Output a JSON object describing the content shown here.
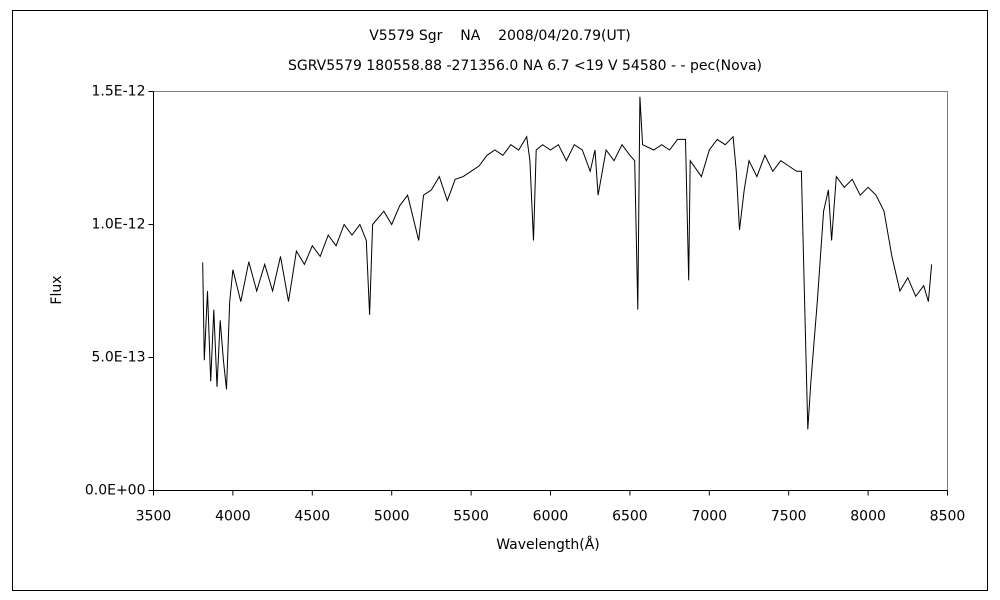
{
  "chart_data": {
    "type": "line",
    "title": "V5579 Sgr    NA    2008/04/20.79(UT)",
    "subtitle": "SGRV5579 180558.88 -271356.0 NA 6.7 <19 V 54580 - - pec(Nova)",
    "x_label": "Wavelength(Å)",
    "y_label": "Flux",
    "color": "#000000",
    "grid": false,
    "xlim": [
      3500,
      8500
    ],
    "xticks": [
      3500,
      4000,
      4500,
      5000,
      5500,
      6000,
      6500,
      7000,
      7500,
      8000,
      8500
    ],
    "ylim": [
      0,
      1.5e-12
    ],
    "yticks": [
      {
        "value": 0,
        "label": "0.0E+00"
      },
      {
        "value": 5e-13,
        "label": "5.0E-13"
      },
      {
        "value": 1e-12,
        "label": "1.0E-12"
      },
      {
        "value": 1.5e-12,
        "label": "1.5E-12"
      }
    ],
    "x": [
      3810,
      3820,
      3840,
      3860,
      3880,
      3900,
      3920,
      3940,
      3960,
      3980,
      4000,
      4050,
      4100,
      4150,
      4200,
      4250,
      4300,
      4350,
      4400,
      4450,
      4500,
      4550,
      4600,
      4650,
      4700,
      4750,
      4800,
      4840,
      4861,
      4880,
      4950,
      5000,
      5050,
      5100,
      5170,
      5200,
      5250,
      5300,
      5350,
      5400,
      5450,
      5500,
      5550,
      5600,
      5650,
      5700,
      5750,
      5800,
      5850,
      5870,
      5893,
      5910,
      5950,
      6000,
      6050,
      6100,
      6150,
      6200,
      6250,
      6280,
      6300,
      6350,
      6400,
      6450,
      6500,
      6530,
      6550,
      6563,
      6580,
      6650,
      6700,
      6750,
      6800,
      6850,
      6870,
      6880,
      6950,
      7000,
      7050,
      7100,
      7150,
      7170,
      7190,
      7220,
      7250,
      7300,
      7350,
      7400,
      7450,
      7500,
      7550,
      7580,
      7600,
      7620,
      7640,
      7680,
      7720,
      7750,
      7770,
      7800,
      7850,
      7900,
      7950,
      8000,
      8050,
      8100,
      8150,
      8200,
      8250,
      8300,
      8350,
      8380,
      8400
    ],
    "values": [
      8.57e-13,
      4.9e-13,
      7.5e-13,
      4.1e-13,
      6.8e-13,
      3.9e-13,
      6.4e-13,
      4.9e-13,
      3.8e-13,
      7.1e-13,
      8.3e-13,
      7.1e-13,
      8.6e-13,
      7.5e-13,
      8.5e-13,
      7.5e-13,
      8.8e-13,
      7.1e-13,
      9e-13,
      8.5e-13,
      9.2e-13,
      8.8e-13,
      9.6e-13,
      9.2e-13,
      1e-12,
      9.6e-13,
      1e-12,
      9.4e-13,
      6.6e-13,
      1e-12,
      1.05e-12,
      1e-12,
      1.07e-12,
      1.11e-12,
      9.4e-13,
      1.11e-12,
      1.13e-12,
      1.18e-12,
      1.09e-12,
      1.17e-12,
      1.18e-12,
      1.2e-12,
      1.22e-12,
      1.26e-12,
      1.28e-12,
      1.26e-12,
      1.3e-12,
      1.28e-12,
      1.33e-12,
      1.24e-12,
      9.4e-13,
      1.28e-12,
      1.3e-12,
      1.28e-12,
      1.3e-12,
      1.24e-12,
      1.3e-12,
      1.28e-12,
      1.2e-12,
      1.28e-12,
      1.11e-12,
      1.28e-12,
      1.24e-12,
      1.3e-12,
      1.26e-12,
      1.24e-12,
      6.8e-13,
      1.48e-12,
      1.3e-12,
      1.28e-12,
      1.3e-12,
      1.28e-12,
      1.32e-12,
      1.32e-12,
      7.9e-13,
      1.24e-12,
      1.18e-12,
      1.28e-12,
      1.32e-12,
      1.3e-12,
      1.33e-12,
      1.2e-12,
      9.8e-13,
      1.13e-12,
      1.24e-12,
      1.18e-12,
      1.26e-12,
      1.2e-12,
      1.24e-12,
      1.22e-12,
      1.2e-12,
      1.2e-12,
      7.1e-13,
      2.3e-13,
      4.1e-13,
      7.1e-13,
      1.05e-12,
      1.13e-12,
      9.4e-13,
      1.18e-12,
      1.14e-12,
      1.17e-12,
      1.11e-12,
      1.14e-12,
      1.11e-12,
      1.05e-12,
      8.8e-13,
      7.5e-13,
      8e-13,
      7.3e-13,
      7.7e-13,
      7.1e-13,
      8.5e-13
    ]
  }
}
